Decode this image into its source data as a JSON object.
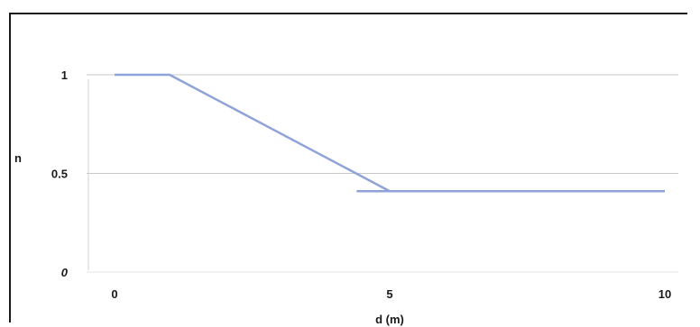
{
  "chart_data": {
    "type": "line",
    "xlabel": "d (m)",
    "ylabel": "n",
    "xlim": [
      0,
      10
    ],
    "ylim": [
      0,
      1
    ],
    "x_ticks": [
      "0",
      "5",
      "10"
    ],
    "y_ticks": [
      "0",
      "0.5",
      "1"
    ],
    "grid": true,
    "series": [
      {
        "x": [
          0,
          1,
          5,
          10
        ],
        "y": [
          1,
          1,
          0.41,
          0.41
        ],
        "color": "#8fa3d9"
      }
    ],
    "reference_segments": [
      {
        "x": [
          4.4,
          10
        ],
        "y": [
          0.41,
          0.41
        ],
        "color": "#8fa3d9"
      }
    ]
  }
}
